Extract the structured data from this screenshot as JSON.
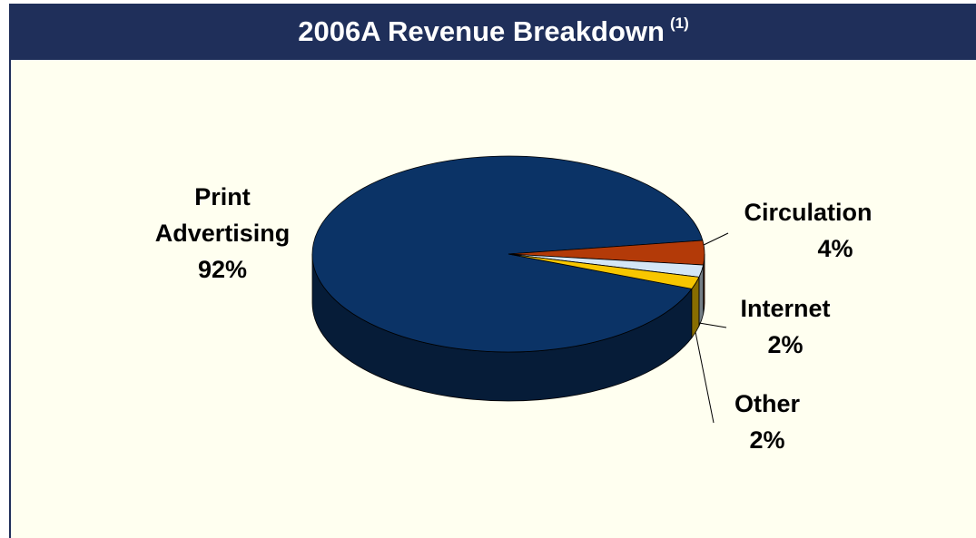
{
  "chart_data": {
    "type": "pie",
    "title": "2006A Revenue Breakdown",
    "footnote_mark": "(1)",
    "categories": [
      "Print Advertising",
      "Circulation",
      "Internet",
      "Other"
    ],
    "values": [
      92,
      4,
      2,
      2
    ],
    "value_labels": [
      "92%",
      "4%",
      "2%",
      "2%"
    ],
    "colors": [
      "#0b3366",
      "#b33a08",
      "#d4e6f6",
      "#f7c600"
    ]
  }
}
